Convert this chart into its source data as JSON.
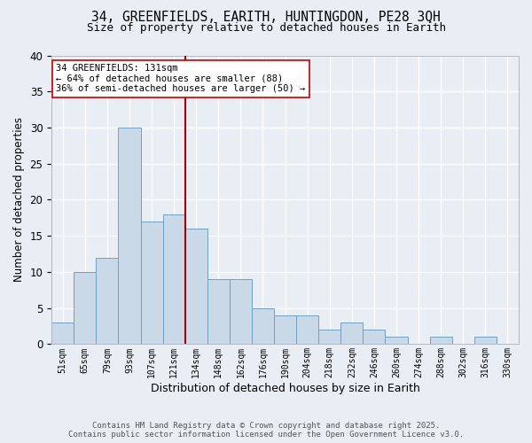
{
  "title_line1": "34, GREENFIELDS, EARITH, HUNTINGDON, PE28 3QH",
  "title_line2": "Size of property relative to detached houses in Earith",
  "xlabel": "Distribution of detached houses by size in Earith",
  "ylabel": "Number of detached properties",
  "bar_labels": [
    "51sqm",
    "65sqm",
    "79sqm",
    "93sqm",
    "107sqm",
    "121sqm",
    "134sqm",
    "148sqm",
    "162sqm",
    "176sqm",
    "190sqm",
    "204sqm",
    "218sqm",
    "232sqm",
    "246sqm",
    "260sqm",
    "274sqm",
    "288sqm",
    "302sqm",
    "316sqm",
    "330sqm"
  ],
  "bar_values": [
    3,
    10,
    12,
    30,
    17,
    18,
    16,
    9,
    9,
    5,
    4,
    4,
    2,
    3,
    2,
    1,
    0,
    1,
    0,
    1,
    0
  ],
  "bar_color": "#c9d9e8",
  "bar_edgecolor": "#6fa0c4",
  "background_color": "#e8eef4",
  "vline_color": "#aa0000",
  "vline_bin": 6,
  "annotation_title": "34 GREENFIELDS: 131sqm",
  "annotation_line2": "← 64% of detached houses are smaller (88)",
  "annotation_line3": "36% of semi-detached houses are larger (50) →",
  "annotation_box_edgecolor": "#cc0000",
  "annotation_box_facecolor": "#ffffff",
  "ylim": [
    0,
    40
  ],
  "yticks": [
    0,
    5,
    10,
    15,
    20,
    25,
    30,
    35,
    40
  ],
  "footer_line1": "Contains HM Land Registry data © Crown copyright and database right 2025.",
  "footer_line2": "Contains public sector information licensed under the Open Government Licence v3.0."
}
